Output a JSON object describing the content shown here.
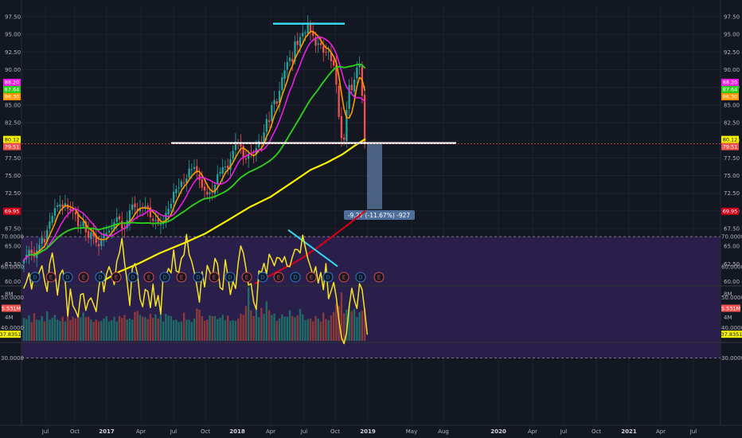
{
  "colors": {
    "background": "#131722",
    "grid": "#1e2230",
    "axis_text": "#b2b5be",
    "up": "#26a69a",
    "down": "#ef5350",
    "rsi_line": "#f6e324",
    "rsi_band": "#2a1f4a",
    "ma_orange": "#ff9800",
    "ma_pink": "#e91ee3",
    "ma_green": "#2ecc1c",
    "ma_yellow": "#f6f200",
    "ma_red": "#d0021b",
    "cyan": "#34d8f0",
    "white": "#ffffff",
    "measure_fill": "#5d7ba3"
  },
  "price_axis": {
    "ticks": [
      "97.50",
      "95.00",
      "92.50",
      "90.00",
      "87.50",
      "85.00",
      "82.50",
      "80.00",
      "77.50",
      "75.00",
      "72.50",
      "70.00",
      "67.50",
      "65.00",
      "62.50",
      "60.00"
    ]
  },
  "price_tags": {
    "left": [
      {
        "text": "88.20",
        "bg": "#e91ee3",
        "fg": "#ffffff",
        "value": 88.2
      },
      {
        "text": "87.64",
        "bg": "#2ecc1c",
        "fg": "#ffffff",
        "value": 87.64
      },
      {
        "text": "86.30",
        "bg": "#ff9800",
        "fg": "#ffffff",
        "value": 86.3
      },
      {
        "text": "80.12",
        "bg": "#f6f200",
        "fg": "#131722",
        "value": 80.12
      },
      {
        "text": "79.51",
        "bg": "#ef5350",
        "fg": "#ffffff",
        "value": 79.51
      },
      {
        "text": "69.95",
        "bg": "#d0021b",
        "fg": "#ffffff",
        "value": 69.95
      }
    ],
    "right": [
      {
        "text": "88.20",
        "bg": "#e91ee3",
        "fg": "#ffffff",
        "value": 88.2
      },
      {
        "text": "87.64",
        "bg": "#2ecc1c",
        "fg": "#ffffff",
        "value": 87.64
      },
      {
        "text": "86.30",
        "bg": "#ff9800",
        "fg": "#ffffff",
        "value": 86.3
      },
      {
        "text": "80.12",
        "bg": "#f6f200",
        "fg": "#131722",
        "value": 80.12
      },
      {
        "text": "79.51",
        "bg": "#ef5350",
        "fg": "#ffffff",
        "value": 79.51
      },
      {
        "text": "69.95",
        "bg": "#d0021b",
        "fg": "#ffffff",
        "value": 69.95
      }
    ]
  },
  "events": [
    "D",
    "E",
    "D",
    "E",
    "D",
    "E",
    "D",
    "E",
    "D",
    "E",
    "D",
    "E",
    "D",
    "E",
    "D",
    "E",
    "D",
    "E",
    "D",
    "E",
    "D",
    "E"
  ],
  "measure_label": "-9.27 (-11.67%) -927",
  "volume_axis": {
    "ticks": [
      "8M",
      "4M"
    ],
    "tag": "5.531M",
    "tag_value": 5.531
  },
  "rsi_axis": {
    "ticks": [
      "70.0000",
      "60.0000",
      "50.0000",
      "40.0000",
      "30.0000"
    ],
    "tag": "37.8351",
    "tag_value": 37.8351
  },
  "time_axis": {
    "labels": [
      {
        "text": "Jul",
        "bold": false
      },
      {
        "text": "Oct",
        "bold": false
      },
      {
        "text": "2017",
        "bold": true
      },
      {
        "text": "Apr",
        "bold": false
      },
      {
        "text": "Jul",
        "bold": false
      },
      {
        "text": "Oct",
        "bold": false
      },
      {
        "text": "2018",
        "bold": true
      },
      {
        "text": "Apr",
        "bold": false
      },
      {
        "text": "Jul",
        "bold": false
      },
      {
        "text": "Oct",
        "bold": false
      },
      {
        "text": "2019",
        "bold": true
      },
      {
        "text": "May",
        "bold": false
      },
      {
        "text": "Aug",
        "bold": false
      },
      {
        "text": "2020",
        "bold": true
      },
      {
        "text": "Apr",
        "bold": false
      },
      {
        "text": "Jul",
        "bold": false
      },
      {
        "text": "Oct",
        "bold": false
      },
      {
        "text": "2021",
        "bold": true
      },
      {
        "text": "Apr",
        "bold": false
      },
      {
        "text": "Jul",
        "bold": false
      }
    ]
  },
  "chart_data": {
    "type": "candlestick",
    "interval": "weekly",
    "price_range": [
      59.5,
      98.5
    ],
    "close": [
      63,
      63.8,
      64.5,
      64,
      63.5,
      64.4,
      65.2,
      66.2,
      65.6,
      67.3,
      68.5,
      69.3,
      70.4,
      70.8,
      70.9,
      70.5,
      71.1,
      70.3,
      70.1,
      70,
      69.5,
      67.8,
      68,
      68.5,
      67,
      66.2,
      67,
      66.4,
      65.5,
      65,
      66,
      66.8,
      66.9,
      67.2,
      67.6,
      68.4,
      69.1,
      68.8,
      67.5,
      67.4,
      68.7,
      70.1,
      70.9,
      70.5,
      69.9,
      70.4,
      70.5,
      70.7,
      70.4,
      69.1,
      68.6,
      68.7,
      68.2,
      68.1,
      68.5,
      69.7,
      70.3,
      71,
      72.7,
      73.1,
      73.3,
      74.2,
      73.9,
      74.6,
      76,
      75.9,
      76.2,
      75.4,
      74.4,
      73.3,
      72.9,
      72.3,
      72.6,
      72.6,
      73.7,
      75.2,
      75.5,
      76.2,
      76.3,
      76,
      77.3,
      78.5,
      79.8,
      79.5,
      79.1,
      77.6,
      77.3,
      78.1,
      78.1,
      77.9,
      78.9,
      79.9,
      79.6,
      81.1,
      83,
      82.6,
      85,
      85.7,
      85.2,
      87,
      88.9,
      89.9,
      91.1,
      91.7,
      91.1,
      94,
      93.5,
      94.6,
      95.2,
      95.3,
      96.4,
      95.4,
      94.8,
      93.4,
      93.7,
      93.5,
      92.4,
      92.5,
      92.6,
      91.2,
      90.6,
      87.9,
      83.3,
      80.3,
      80.1,
      84.3,
      87.8,
      87.1,
      88.6,
      90.3,
      90.7,
      86.3,
      79.51
    ],
    "volume_scale_max": 10,
    "volume": [
      3.9,
      3.7,
      4.3,
      3.2,
      4.7,
      3.6,
      3.5,
      4.2,
      3.3,
      5,
      3.6,
      3.9,
      4.4,
      3.6,
      3.4,
      4.1,
      3.3,
      5.3,
      3.5,
      4.1,
      3.8,
      4.2,
      4,
      4.8,
      4,
      4.1,
      3.6,
      3.2,
      3.6,
      3.3,
      3.4,
      3.8,
      4.2,
      3.3,
      3.5,
      4.1,
      3.3,
      4.2,
      3.9,
      4.4,
      3.6,
      3.8,
      3.6,
      4.9,
      5.1,
      4.4,
      4.1,
      4,
      3.7,
      4.6,
      3.9,
      4.5,
      3.8,
      4.6,
      3.3,
      4.6,
      4.3,
      4.2,
      3.5,
      3.6,
      3.2,
      3.3,
      4.8,
      3.6,
      3.6,
      3.2,
      3.8,
      5.5,
      5.3,
      4.2,
      3.4,
      3.6,
      4.3,
      4.2,
      4.2,
      3.7,
      3.9,
      4.4,
      3.5,
      4.3,
      3.4,
      3.5,
      3.4,
      3.8,
      4.6,
      4.4,
      5.9,
      9.1,
      5.2,
      4.2,
      5.6,
      4,
      5.6,
      4.6,
      6.7,
      5.2,
      4.4,
      4.6,
      3.4,
      3.8,
      4.5,
      4.1,
      4.1,
      5.2,
      4.2,
      4,
      4.3,
      5.4,
      4.5,
      3.5,
      3.7,
      3.8,
      3.3,
      4.2,
      3.8,
      3.3,
      4.8,
      3.7,
      3.5,
      4.3,
      4.9,
      6.3,
      5.9,
      8.2,
      4.7,
      5.3,
      5.9,
      5.1,
      5.4,
      4,
      4.9,
      5.1,
      5.531
    ],
    "rsi_range": [
      27,
      73
    ],
    "rsi": [
      53,
      55.1,
      58,
      52.7,
      58.2,
      55.7,
      58.4,
      60.4,
      55.5,
      51.9,
      61.1,
      64.6,
      58.8,
      50.7,
      57.5,
      59,
      55.3,
      43.8,
      52.7,
      47.2,
      45.6,
      43.5,
      50.9,
      51.2,
      45.7,
      48.8,
      49.8,
      47.6,
      45.3,
      52.9,
      58.5,
      51.8,
      57.6,
      60.1,
      57.6,
      54.2,
      61.8,
      64.6,
      69.4,
      61.3,
      55.1,
      47.3,
      59.5,
      61.1,
      57.7,
      49.5,
      46.9,
      52.6,
      51.9,
      46.6,
      54.3,
      47.1,
      50.6,
      44.5,
      57.5,
      57.1,
      59.5,
      58,
      65.6,
      58.7,
      58.2,
      62.8,
      64,
      70.7,
      64.1,
      61.8,
      58.3,
      53.7,
      48.4,
      58.4,
      53.4,
      60.5,
      58.3,
      56.3,
      62.8,
      61,
      53.2,
      52.5,
      62.4,
      56.9,
      50.9,
      55.2,
      52.9,
      61.3,
      66.9,
      64.6,
      59.6,
      54,
      54.5,
      48.5,
      46,
      58.7,
      58.2,
      61.2,
      57.7,
      64.2,
      62.5,
      60.4,
      63.1,
      62.9,
      61.5,
      63.4,
      60.2,
      60.1,
      63.3,
      65.8,
      65.7,
      64.6,
      70.5,
      66.4,
      62.7,
      60.1,
      57.1,
      60.1,
      54.7,
      58.2,
      52.5,
      61.1,
      49.5,
      52.1,
      54.9,
      50,
      42.7,
      36.8,
      34.7,
      38.4,
      47,
      53,
      49,
      46.3,
      54.5,
      52.6,
      45.5,
      37.8351
    ]
  }
}
